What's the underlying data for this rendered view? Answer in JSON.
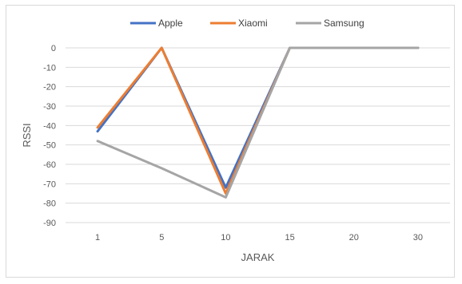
{
  "chart_data": {
    "type": "line",
    "categories": [
      "1",
      "5",
      "10",
      "15",
      "20",
      "30"
    ],
    "series": [
      {
        "name": "Apple",
        "color": "#4472c4",
        "values": [
          -43,
          0,
          -72,
          0,
          0,
          0
        ]
      },
      {
        "name": "Xiaomi",
        "color": "#ed7d31",
        "values": [
          -41,
          0,
          -75,
          0,
          0,
          0
        ]
      },
      {
        "name": "Samsung",
        "color": "#a5a5a5",
        "values": [
          -48,
          -62,
          -77,
          0,
          0,
          0
        ]
      }
    ],
    "xlabel": "JARAK",
    "ylabel": "RSSI",
    "ylim": [
      -90,
      0
    ],
    "yticks": [
      0,
      -10,
      -20,
      -30,
      -40,
      -50,
      -60,
      -70,
      -80,
      -90
    ],
    "grid": true,
    "legend_position": "top"
  }
}
